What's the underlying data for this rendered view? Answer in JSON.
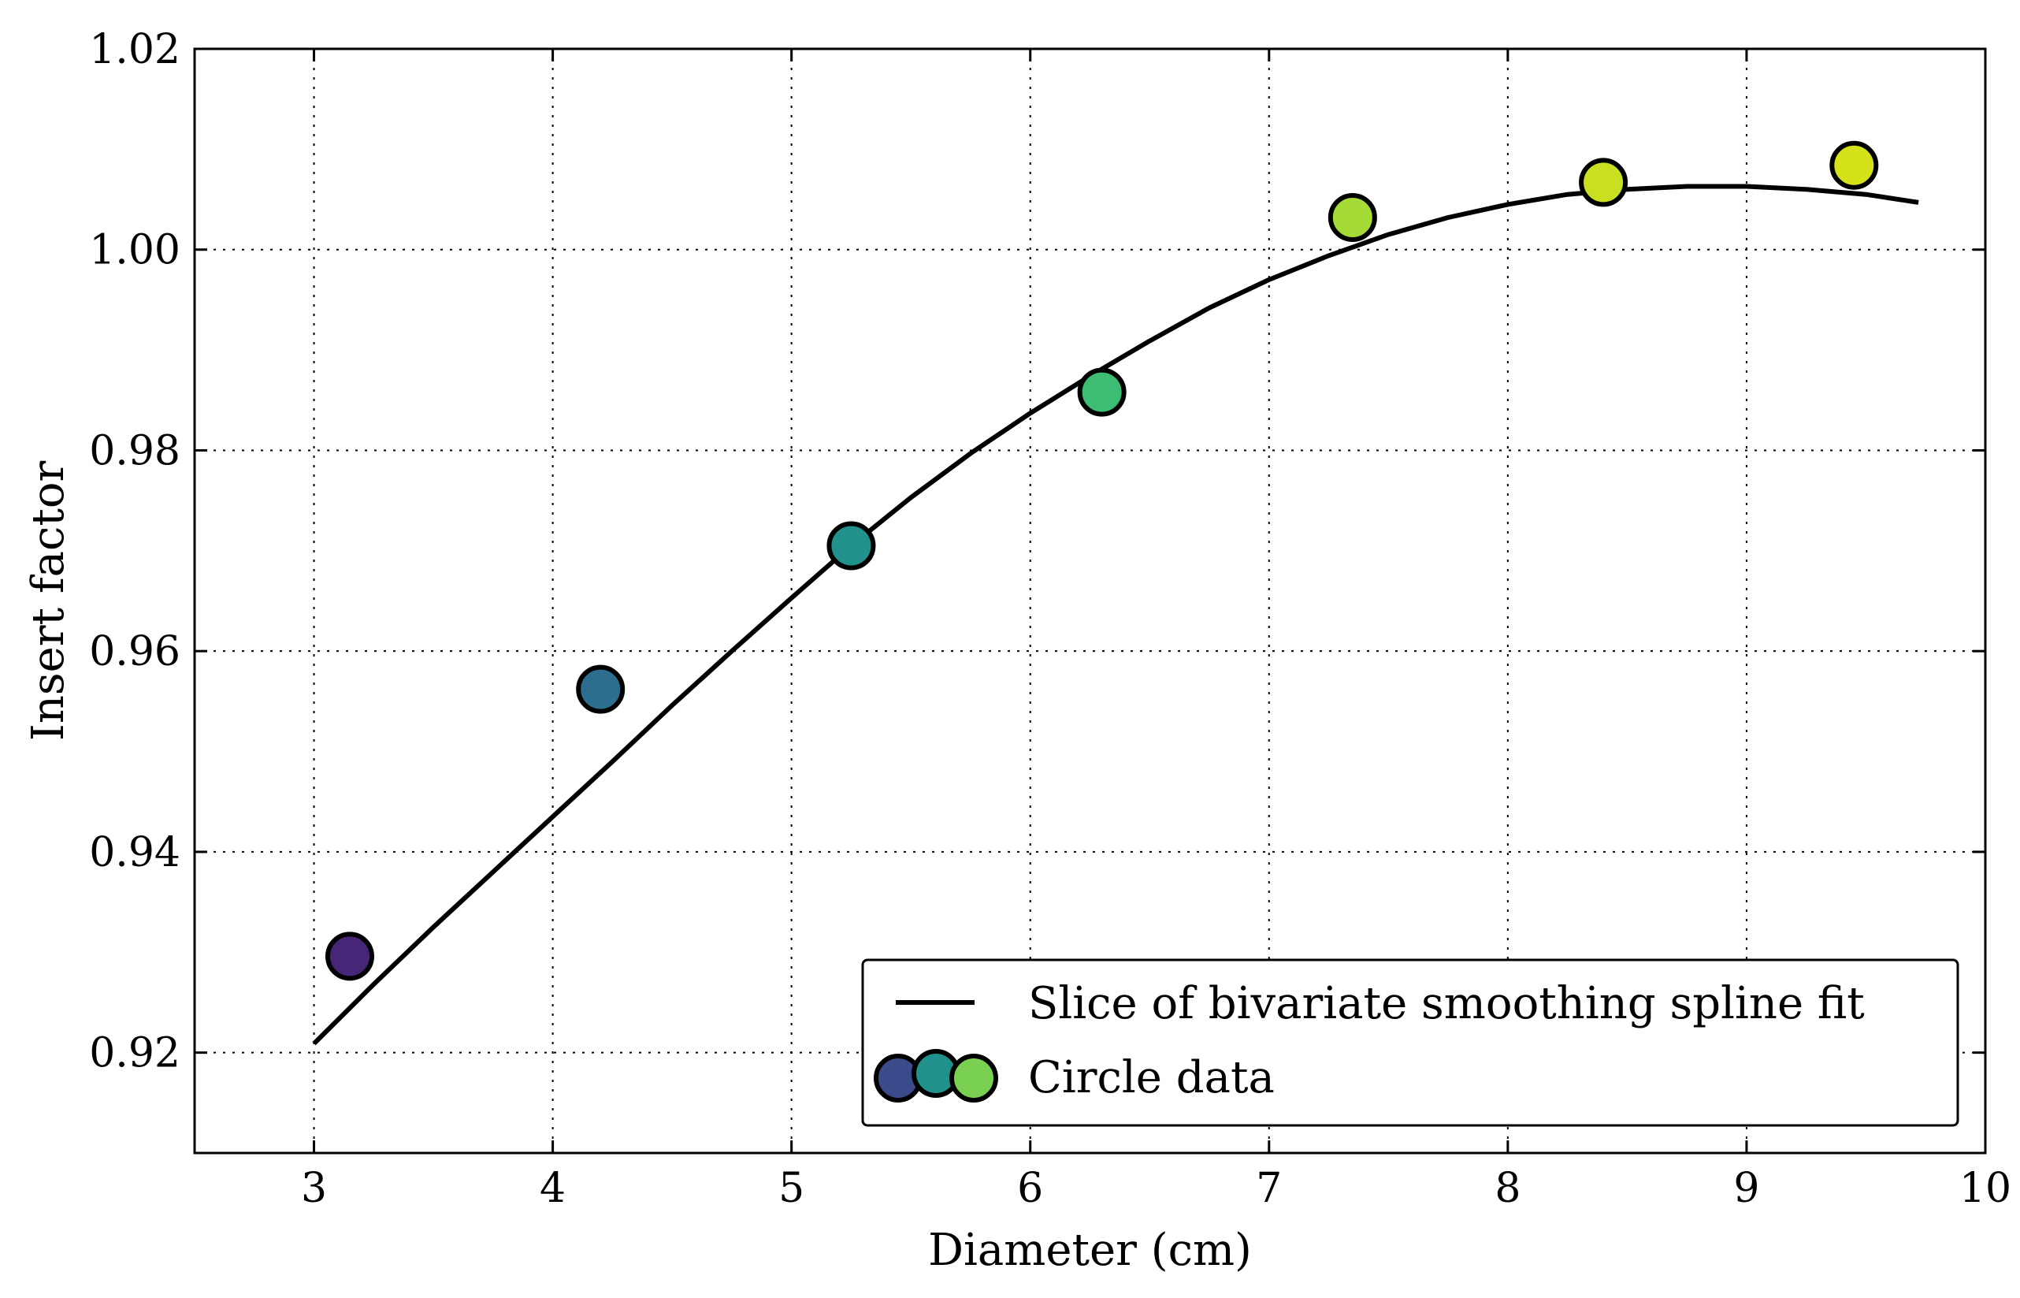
{
  "chart_data": {
    "type": "scatter",
    "xlabel": "Diameter (cm)",
    "ylabel": "Insert factor",
    "xlim": [
      2.5,
      10
    ],
    "ylim": [
      0.91,
      1.02
    ],
    "xticks": [
      3,
      4,
      5,
      6,
      7,
      8,
      9,
      10
    ],
    "yticks": [
      0.92,
      0.94,
      0.96,
      0.98,
      1.0,
      1.02
    ],
    "yticklabels": [
      "0.92",
      "0.94",
      "0.96",
      "0.98",
      "1.00",
      "1.02"
    ],
    "grid": true,
    "legend_position": "bottom-right",
    "series": [
      {
        "name": "Slice of bivariate smoothing spline fit",
        "type": "line",
        "color": "#000000",
        "x": [
          3.0,
          3.25,
          3.5,
          3.75,
          4.0,
          4.25,
          4.5,
          4.75,
          5.0,
          5.25,
          5.5,
          5.75,
          6.0,
          6.25,
          6.5,
          6.75,
          7.0,
          7.25,
          7.5,
          7.75,
          8.0,
          8.25,
          8.5,
          8.75,
          9.0,
          9.25,
          9.5,
          9.72
        ],
        "y": [
          0.9209,
          0.9268,
          0.9325,
          0.938,
          0.9435,
          0.949,
          0.9546,
          0.96,
          0.9653,
          0.9705,
          0.9753,
          0.9797,
          0.9837,
          0.9874,
          0.9909,
          0.9942,
          0.997,
          0.9994,
          1.0015,
          1.0032,
          1.0045,
          1.0055,
          1.006,
          1.0063,
          1.0063,
          1.006,
          1.0055,
          1.0047
        ]
      },
      {
        "name": "Circle data",
        "type": "scatter",
        "x": [
          3.15,
          4.2,
          5.25,
          6.3,
          7.35,
          8.4,
          9.45
        ],
        "y": [
          0.9296,
          0.9562,
          0.9705,
          0.9858,
          1.0032,
          1.0067,
          1.0084
        ],
        "colors": [
          "#482677",
          "#2d6e8e",
          "#21918c",
          "#3dbc74",
          "#a5db36",
          "#c8e020",
          "#d5e21a"
        ]
      }
    ],
    "legend_marker_colors": [
      "#3b4a8a",
      "#21918c",
      "#7ad151"
    ]
  }
}
